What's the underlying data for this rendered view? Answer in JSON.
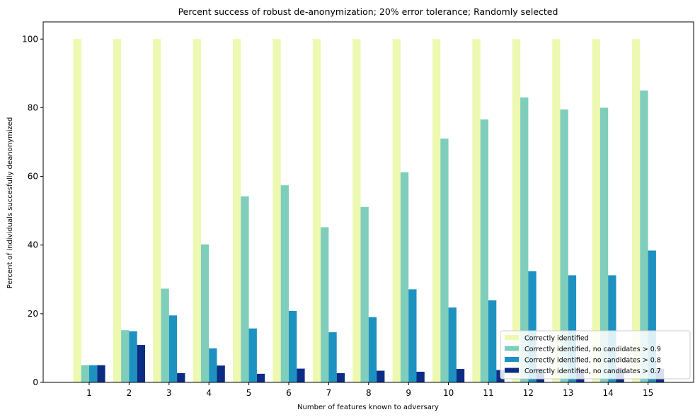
{
  "chart_data": {
    "type": "bar",
    "title": "Percent success of robust de-anonymization; 20% error tolerance; Randomly selected",
    "xlabel": "Number of features known to adversary",
    "ylabel": "Percent of individuals succesfully deanonymized",
    "categories": [
      "1",
      "2",
      "3",
      "4",
      "5",
      "6",
      "7",
      "8",
      "9",
      "10",
      "11",
      "12",
      "13",
      "14",
      "15"
    ],
    "ylim": [
      0,
      105
    ],
    "yticks": [
      0,
      20,
      40,
      60,
      80,
      100
    ],
    "grid": false,
    "legend_position": "bottom-right",
    "series": [
      {
        "name": "Correctly identified",
        "color": "#edf8b1",
        "values": [
          100,
          100,
          100,
          100,
          100,
          100,
          100,
          100,
          100,
          100,
          100,
          100,
          100,
          100,
          100
        ]
      },
      {
        "name": "Correctly identified, no candidates > 0.9",
        "color": "#7fcdbb",
        "values": [
          5,
          15.2,
          27.3,
          40.2,
          54.2,
          57.4,
          45.2,
          51.1,
          61.2,
          71,
          76.6,
          83,
          79.5,
          80,
          85
        ]
      },
      {
        "name": "Correctly identified, no candidates > 0.8",
        "color": "#1d91c0",
        "values": [
          5,
          14.9,
          19.5,
          9.9,
          15.7,
          20.8,
          14.6,
          19,
          27.1,
          21.8,
          23.9,
          32.4,
          31.2,
          31.2,
          38.4
        ]
      },
      {
        "name": "Correctly identified, no candidates > 0.7",
        "color": "#0c2c84",
        "values": [
          5,
          10.9,
          2.7,
          4.9,
          2.5,
          4,
          2.7,
          3.4,
          3.1,
          3.9,
          3.6,
          4,
          4,
          4,
          4
        ]
      }
    ]
  }
}
